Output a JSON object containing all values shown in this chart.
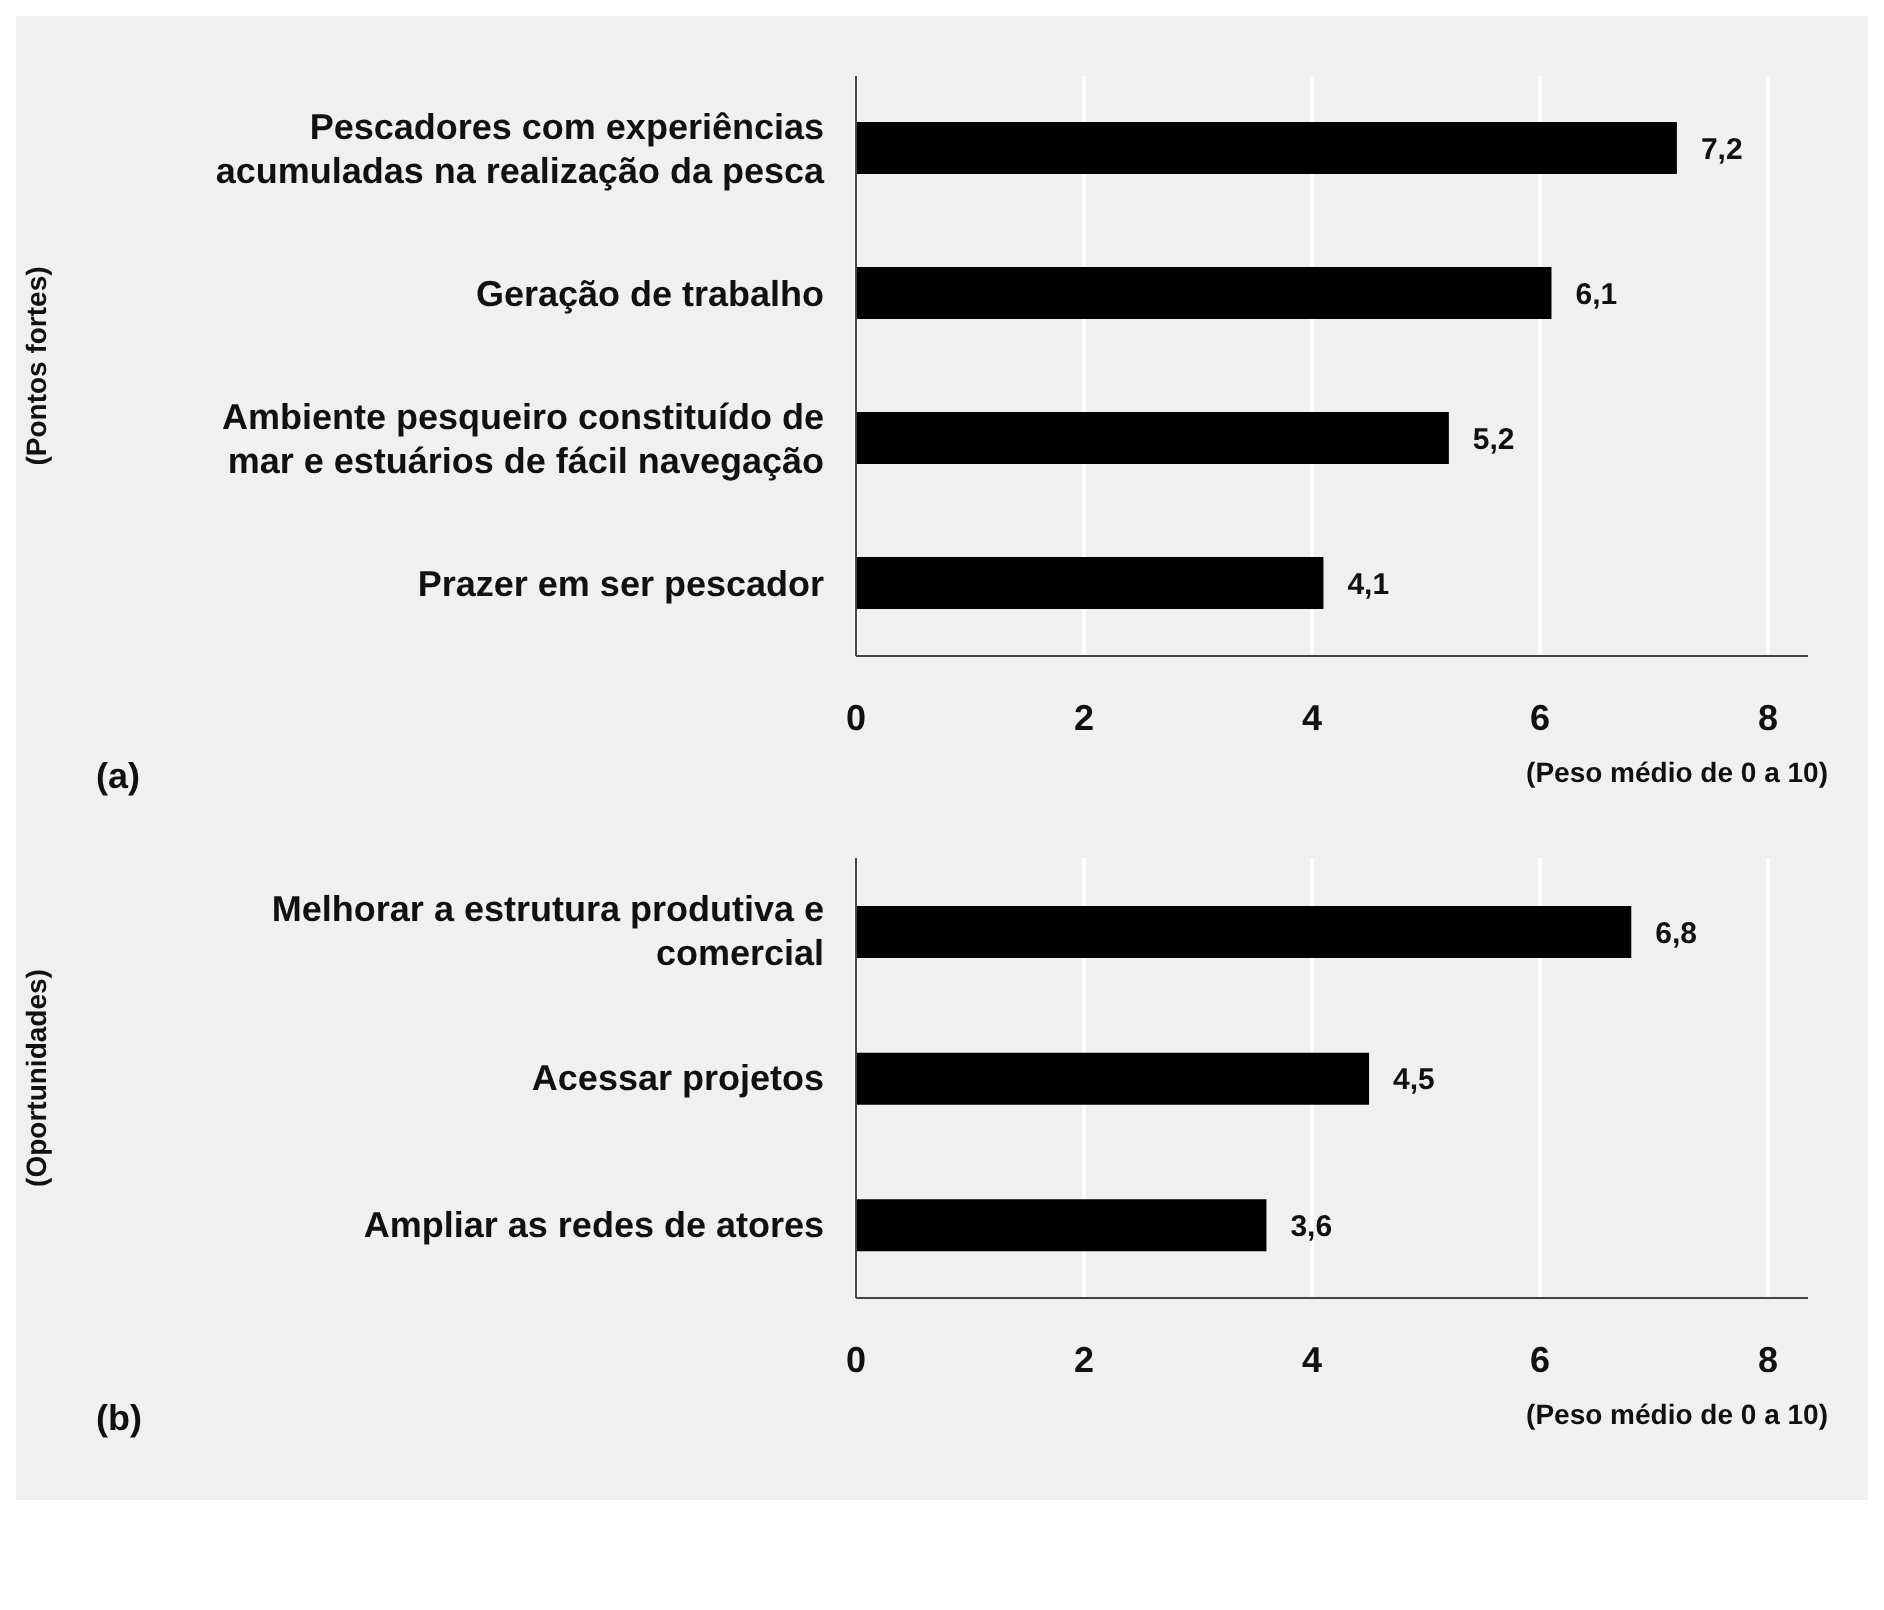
{
  "chart_data": [
    {
      "type": "bar",
      "orientation": "horizontal",
      "ylabel": "(Pontos fortes)",
      "xlabel": "(Peso médio de 0 a 10)",
      "annotations": [
        "(a)"
      ],
      "categories": [
        "Pescadores com experiências acumuladas na realização da pesca",
        "Geração de trabalho",
        "Ambiente pesqueiro constituído de mar e estuários de fácil navegação",
        "Prazer em ser pescador"
      ],
      "values": [
        7.2,
        6.1,
        5.2,
        4.1
      ],
      "value_labels": [
        "7,2",
        "6,1",
        "5,2",
        "4,1"
      ],
      "color": "#000000",
      "xlim": [
        0,
        8.35
      ],
      "xticks": [
        0,
        2,
        4,
        6,
        8
      ],
      "grid": "x"
    },
    {
      "type": "bar",
      "orientation": "horizontal",
      "ylabel": "(Oportunidades)",
      "xlabel": "(Peso médio de 0 a 10)",
      "annotations": [
        "(b)"
      ],
      "categories": [
        "Melhorar a estrutura produtiva e comercial",
        "Acessar projetos",
        "Ampliar as redes de atores"
      ],
      "values": [
        6.8,
        4.5,
        3.6
      ],
      "value_labels": [
        "6,8",
        "4,5",
        "3,6"
      ],
      "color": "#000000",
      "xlim": [
        0,
        8.35
      ],
      "xticks": [
        0,
        2,
        4,
        6,
        8
      ],
      "grid": "x"
    }
  ]
}
